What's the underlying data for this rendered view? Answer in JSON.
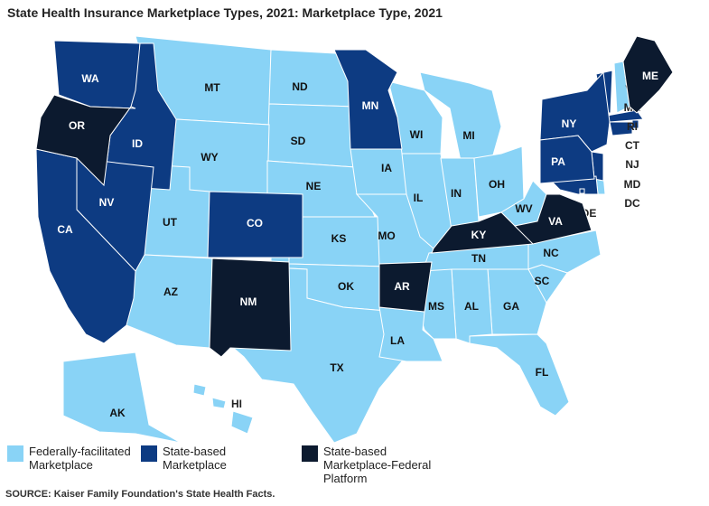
{
  "title": "State Health Insurance Marketplace Types, 2021: Marketplace Type, 2021",
  "legend": [
    {
      "label": "Federally-facilitated Marketplace",
      "color": "#89d3f6",
      "states": [
        "NH",
        "MT",
        "ND",
        "SD",
        "WY",
        "UT",
        "AZ",
        "NE",
        "KS",
        "OK",
        "TX",
        "IA",
        "MO",
        "WI",
        "MI",
        "IL",
        "IN",
        "OH",
        "WV",
        "DE",
        "TN",
        "NC",
        "SC",
        "GA",
        "AL",
        "MS",
        "LA",
        "FL",
        "AK",
        "HI"
      ]
    },
    {
      "label": "State-based Marketplace",
      "color": "#0d3b82",
      "states": [
        "VT",
        "MA",
        "RI",
        "CT",
        "NJ",
        "MD",
        "DC",
        "NY",
        "PA",
        "WA",
        "ID",
        "NV",
        "CA",
        "CO",
        "MN"
      ]
    },
    {
      "label": "State-based Marketplace-Federal Platform",
      "color": "#0c1a2f",
      "states": [
        "OR",
        "NM",
        "AR",
        "KY",
        "VA",
        "ME"
      ]
    }
  ],
  "source": "SOURCE: Kaiser Family Foundation's State Health Facts."
}
